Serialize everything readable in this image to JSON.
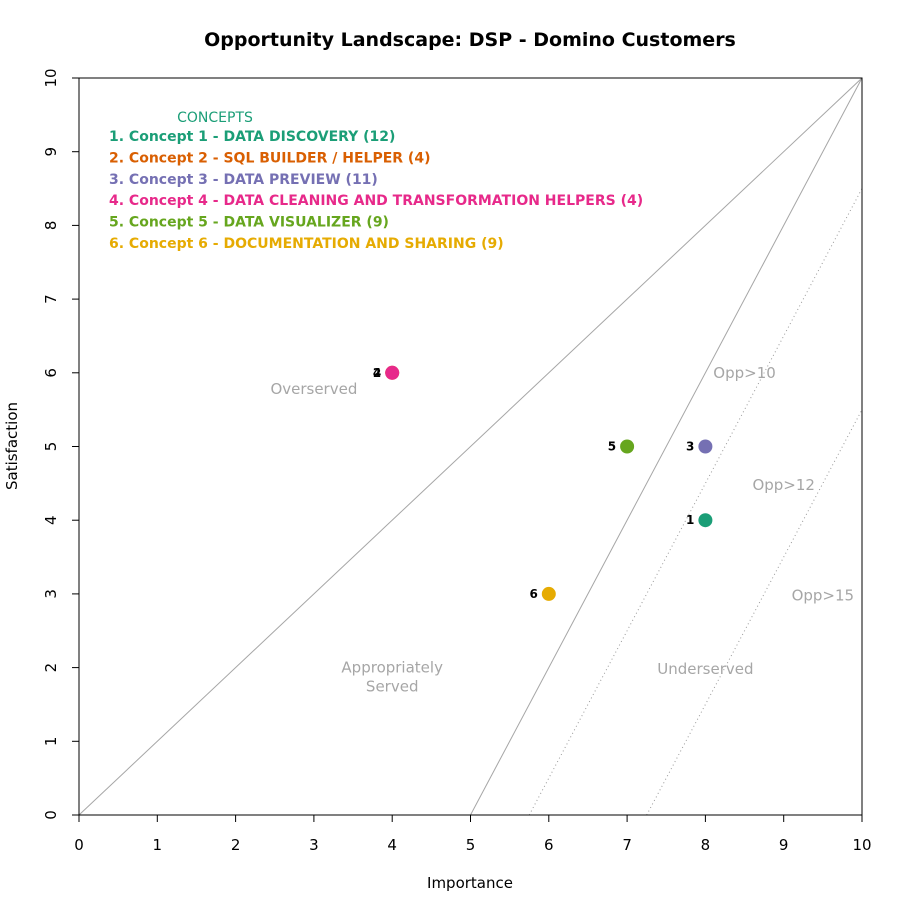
{
  "chart_data": {
    "type": "scatter",
    "title": "Opportunity Landscape: DSP - Domino Customers",
    "xlabel": "Importance",
    "ylabel": "Satisfaction",
    "xlim": [
      0,
      10
    ],
    "ylim": [
      0,
      10
    ],
    "xticks": [
      "0",
      "1",
      "2",
      "3",
      "4",
      "5",
      "6",
      "7",
      "8",
      "9",
      "10"
    ],
    "yticks": [
      "0",
      "1",
      "2",
      "3",
      "4",
      "5",
      "6",
      "7",
      "8",
      "9",
      "10"
    ],
    "grid": false,
    "legend": {
      "title": "CONCEPTS",
      "title_color": "#1b9e77",
      "placement": "top-left",
      "items": [
        {
          "label": "1. Concept 1 - DATA DISCOVERY (12)",
          "color": "#1b9e77"
        },
        {
          "label": "2. Concept 2 - SQL BUILDER / HELPER (4)",
          "color": "#d95f02"
        },
        {
          "label": "3. Concept 3 - DATA PREVIEW (11)",
          "color": "#7570b3"
        },
        {
          "label": "4. Concept 4 - DATA CLEANING AND TRANSFORMATION HELPERS (4)",
          "color": "#e7298a"
        },
        {
          "label": "5. Concept 5 - DATA VISUALIZER (9)",
          "color": "#66a61e"
        },
        {
          "label": "6. Concept 6 - DOCUMENTATION AND SHARING (9)",
          "color": "#e6ab02"
        }
      ]
    },
    "points": [
      {
        "label": "1",
        "x": 8,
        "y": 4,
        "color": "#1b9e77"
      },
      {
        "label": "2",
        "x": 4,
        "y": 6,
        "color": "#d95f02"
      },
      {
        "label": "3",
        "x": 8,
        "y": 5,
        "color": "#7570b3"
      },
      {
        "label": "4",
        "x": 4,
        "y": 6,
        "color": "#e7298a"
      },
      {
        "label": "5",
        "x": 7,
        "y": 5,
        "color": "#66a61e"
      },
      {
        "label": "6",
        "x": 6,
        "y": 3,
        "color": "#e6ab02"
      }
    ],
    "reference_lines": [
      {
        "name": "diagonal",
        "from": [
          0,
          0
        ],
        "to": [
          10,
          10
        ],
        "style": "solid"
      },
      {
        "name": "underserved-boundary",
        "from": [
          5,
          0
        ],
        "to": [
          10,
          10
        ],
        "style": "solid"
      },
      {
        "name": "opp-10",
        "from": [
          5.75,
          0
        ],
        "to": [
          10,
          8.5
        ],
        "style": "dotted"
      },
      {
        "name": "opp-15",
        "from": [
          7.25,
          0
        ],
        "to": [
          10,
          5.5
        ],
        "style": "dotted"
      }
    ],
    "annotations": [
      {
        "name": "overserved",
        "lines": [
          "Overserved"
        ],
        "x": 3.0,
        "y": 5.78
      },
      {
        "name": "appropriately-served",
        "lines": [
          "Appropriately",
          "Served"
        ],
        "x": 4.0,
        "y": 2.0
      },
      {
        "name": "underserved",
        "lines": [
          "Underserved"
        ],
        "x": 8.0,
        "y": 1.98
      },
      {
        "name": "opp-10",
        "lines": [
          "Opp>10"
        ],
        "x": 8.5,
        "y": 6.0
      },
      {
        "name": "opp-12",
        "lines": [
          "Opp>12"
        ],
        "x": 9.0,
        "y": 4.48
      },
      {
        "name": "opp-15",
        "lines": [
          "Opp>15"
        ],
        "x": 9.5,
        "y": 2.98
      }
    ]
  }
}
